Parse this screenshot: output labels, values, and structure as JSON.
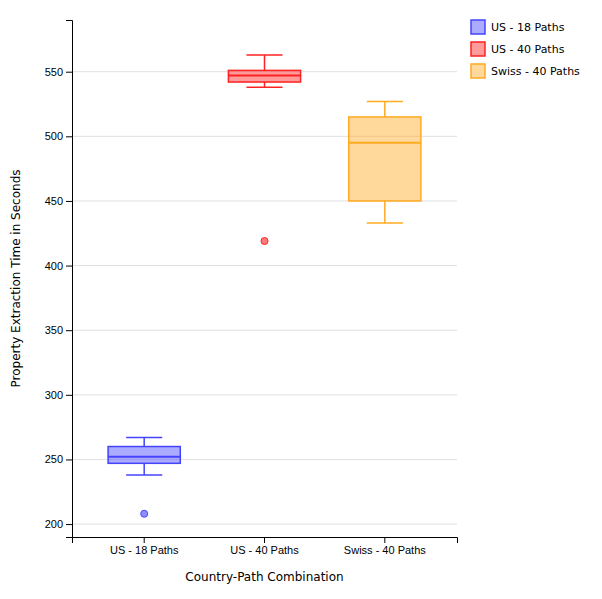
{
  "chart_data": {
    "type": "box",
    "xlabel": "Country-Path Combination",
    "ylabel": "Property Extraction Time in Seconds",
    "categories": [
      "US - 18 Paths",
      "US - 40 Paths",
      "Swiss - 40 Paths"
    ],
    "boxes": [
      {
        "whislo": 238,
        "q1": 247,
        "med": 252,
        "q3": 260,
        "whishi": 267,
        "fliers": [
          208
        ]
      },
      {
        "whislo": 538,
        "q1": 542,
        "med": 547,
        "q3": 551,
        "whishi": 563,
        "fliers": [
          419
        ]
      },
      {
        "whislo": 433,
        "q1": 450,
        "med": 495,
        "q3": 515,
        "whishi": 527,
        "fliers": []
      }
    ],
    "colors": [
      "#4444ff",
      "#ff2222",
      "#ffaa22"
    ],
    "ylim": [
      190,
      590
    ],
    "yticks": [
      200,
      250,
      300,
      350,
      400,
      450,
      500,
      550
    ],
    "grid": true,
    "legend": "right"
  }
}
